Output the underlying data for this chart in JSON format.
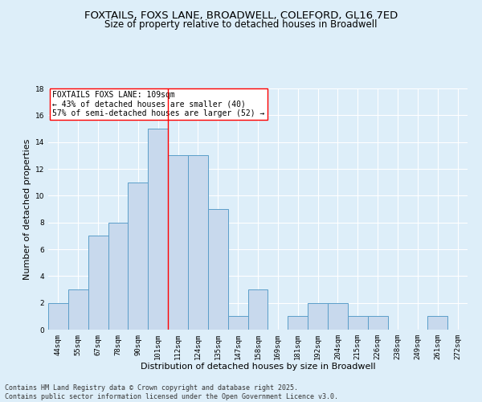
{
  "title_line1": "FOXTAILS, FOXS LANE, BROADWELL, COLEFORD, GL16 7ED",
  "title_line2": "Size of property relative to detached houses in Broadwell",
  "xlabel": "Distribution of detached houses by size in Broadwell",
  "ylabel": "Number of detached properties",
  "categories": [
    "44sqm",
    "55sqm",
    "67sqm",
    "78sqm",
    "90sqm",
    "101sqm",
    "112sqm",
    "124sqm",
    "135sqm",
    "147sqm",
    "158sqm",
    "169sqm",
    "181sqm",
    "192sqm",
    "204sqm",
    "215sqm",
    "226sqm",
    "238sqm",
    "249sqm",
    "261sqm",
    "272sqm"
  ],
  "values": [
    2,
    3,
    7,
    8,
    11,
    15,
    13,
    13,
    9,
    1,
    3,
    0,
    1,
    2,
    2,
    1,
    1,
    0,
    0,
    1,
    0
  ],
  "bar_color": "#c8d9ed",
  "bar_edge_color": "#5b9ec9",
  "vline_x": 5.5,
  "vline_color": "red",
  "ylim": [
    0,
    18
  ],
  "yticks": [
    0,
    2,
    4,
    6,
    8,
    10,
    12,
    14,
    16,
    18
  ],
  "annotation_text": "FOXTAILS FOXS LANE: 109sqm\n← 43% of detached houses are smaller (40)\n57% of semi-detached houses are larger (52) →",
  "annotation_box_color": "white",
  "annotation_box_edge_color": "red",
  "footer_text": "Contains HM Land Registry data © Crown copyright and database right 2025.\nContains public sector information licensed under the Open Government Licence v3.0.",
  "background_color": "#ddeef9",
  "grid_color": "white",
  "title_fontsize": 9.5,
  "subtitle_fontsize": 8.5,
  "tick_fontsize": 6.5,
  "label_fontsize": 8,
  "annotation_fontsize": 7,
  "footer_fontsize": 6
}
